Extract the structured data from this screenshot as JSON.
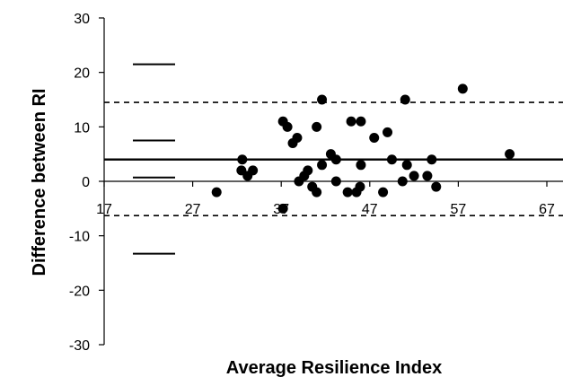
{
  "chart_data": {
    "type": "scatter",
    "xlabel": "Average Resilience Index",
    "ylabel": "Difference between RI",
    "xlim": [
      17,
      67
    ],
    "ylim": [
      -30,
      30
    ],
    "x_ticks": [
      17,
      27,
      37,
      47,
      57,
      67
    ],
    "y_ticks": [
      30,
      20,
      10,
      0,
      -10,
      -20,
      -30
    ],
    "grid": false,
    "legend": "none",
    "mean_line": 4,
    "limits_of_agreement": [
      14.5,
      -6.3
    ],
    "reference_segments": [
      21.5,
      7.5,
      0.7,
      -13.3
    ],
    "points": [
      {
        "x": 29.7,
        "y": -2
      },
      {
        "x": 32.5,
        "y": 2
      },
      {
        "x": 32.6,
        "y": 4
      },
      {
        "x": 33.2,
        "y": 1
      },
      {
        "x": 33.8,
        "y": 2
      },
      {
        "x": 37.2,
        "y": 11
      },
      {
        "x": 37.7,
        "y": 10
      },
      {
        "x": 38.3,
        "y": 7
      },
      {
        "x": 38.8,
        "y": 8
      },
      {
        "x": 37.2,
        "y": -5
      },
      {
        "x": 39.0,
        "y": 0
      },
      {
        "x": 39.6,
        "y": 1
      },
      {
        "x": 40.0,
        "y": 2
      },
      {
        "x": 40.5,
        "y": -1
      },
      {
        "x": 41.0,
        "y": -2
      },
      {
        "x": 41.0,
        "y": 10
      },
      {
        "x": 41.6,
        "y": 3
      },
      {
        "x": 41.6,
        "y": 15
      },
      {
        "x": 42.6,
        "y": 5
      },
      {
        "x": 43.2,
        "y": 4
      },
      {
        "x": 43.2,
        "y": 0
      },
      {
        "x": 44.5,
        "y": -2
      },
      {
        "x": 44.9,
        "y": 11
      },
      {
        "x": 45.5,
        "y": -2
      },
      {
        "x": 46.0,
        "y": 11
      },
      {
        "x": 45.9,
        "y": -1
      },
      {
        "x": 46.0,
        "y": 3
      },
      {
        "x": 47.5,
        "y": 8
      },
      {
        "x": 48.5,
        "y": -2
      },
      {
        "x": 49.0,
        "y": 9
      },
      {
        "x": 49.5,
        "y": 4
      },
      {
        "x": 50.7,
        "y": 0
      },
      {
        "x": 51.0,
        "y": 15
      },
      {
        "x": 51.2,
        "y": 3
      },
      {
        "x": 52.0,
        "y": 1
      },
      {
        "x": 53.5,
        "y": 1
      },
      {
        "x": 54.0,
        "y": 4
      },
      {
        "x": 54.5,
        "y": -1
      },
      {
        "x": 57.5,
        "y": 17
      },
      {
        "x": 62.8,
        "y": 5
      }
    ]
  }
}
